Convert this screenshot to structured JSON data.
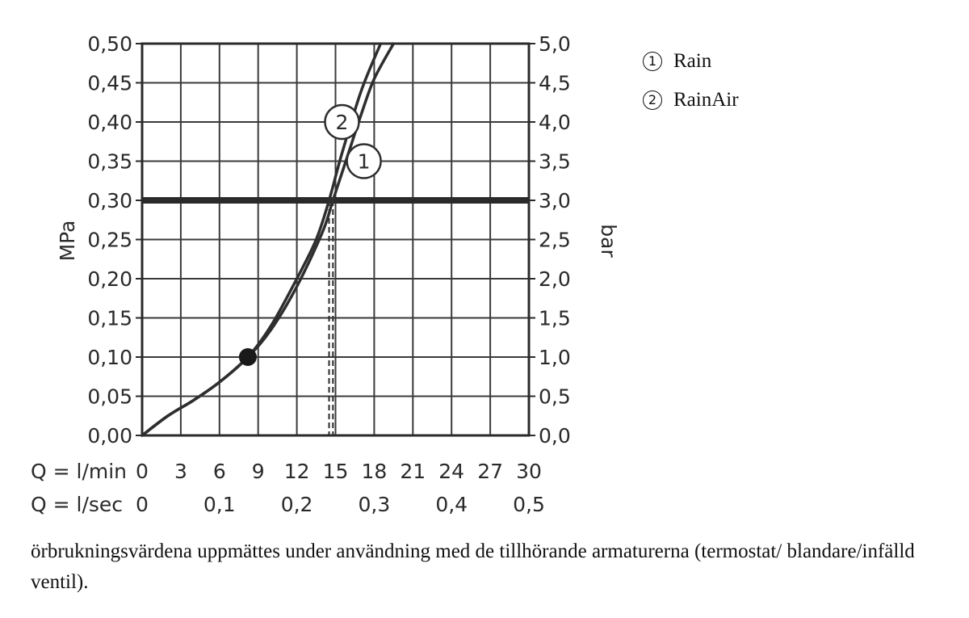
{
  "chart_data": {
    "type": "line",
    "y_left_label": "MPa",
    "y_right_label": "bar",
    "y_left_ticks": [
      "0,00",
      "0,05",
      "0,10",
      "0,15",
      "0,20",
      "0,25",
      "0,30",
      "0,35",
      "0,40",
      "0,45",
      "0,50"
    ],
    "y_right_ticks": [
      "0,0",
      "0,5",
      "1,0",
      "1,5",
      "2,0",
      "2,5",
      "3,0",
      "3,5",
      "4,0",
      "4,5",
      "5,0"
    ],
    "ylim": [
      0,
      0.5
    ],
    "xlim": [
      0,
      30
    ],
    "x_row1_label": "Q = l/min",
    "x_row1_ticks": [
      {
        "v": 0,
        "t": "0"
      },
      {
        "v": 3,
        "t": "3"
      },
      {
        "v": 6,
        "t": "6"
      },
      {
        "v": 9,
        "t": "9"
      },
      {
        "v": 12,
        "t": "12"
      },
      {
        "v": 15,
        "t": "15"
      },
      {
        "v": 18,
        "t": "18"
      },
      {
        "v": 21,
        "t": "21"
      },
      {
        "v": 24,
        "t": "24"
      },
      {
        "v": 27,
        "t": "27"
      },
      {
        "v": 30,
        "t": "30"
      }
    ],
    "x_row2_label": "Q = l/sec",
    "x_row2_ticks": [
      {
        "v": 0,
        "t": "0"
      },
      {
        "v": 6,
        "t": "0,1"
      },
      {
        "v": 12,
        "t": "0,2"
      },
      {
        "v": 18,
        "t": "0,3"
      },
      {
        "v": 24,
        "t": "0,4"
      },
      {
        "v": 30,
        "t": "0,5"
      }
    ],
    "grid": true,
    "reference_line": {
      "y": 0.3
    },
    "junction_point": {
      "x": 8.2,
      "y": 0.1
    },
    "series": [
      {
        "name": "Rain",
        "marker": "1",
        "points": [
          [
            0,
            0
          ],
          [
            2,
            0.025
          ],
          [
            4,
            0.045
          ],
          [
            6,
            0.068
          ],
          [
            8.2,
            0.1
          ],
          [
            10,
            0.135
          ],
          [
            12,
            0.19
          ],
          [
            14,
            0.26
          ],
          [
            14.8,
            0.3
          ],
          [
            16,
            0.36
          ],
          [
            17,
            0.41
          ],
          [
            18,
            0.455
          ],
          [
            19.5,
            0.5
          ]
        ],
        "marker_at": [
          17.2,
          0.35
        ],
        "drop_x": 14.8
      },
      {
        "name": "RainAir",
        "marker": "2",
        "points": [
          [
            0,
            0
          ],
          [
            2,
            0.025
          ],
          [
            4,
            0.045
          ],
          [
            6,
            0.068
          ],
          [
            8.2,
            0.1
          ],
          [
            10,
            0.14
          ],
          [
            12,
            0.2
          ],
          [
            13.5,
            0.25
          ],
          [
            14.5,
            0.3
          ],
          [
            15.5,
            0.36
          ],
          [
            17,
            0.44
          ],
          [
            18.5,
            0.5
          ]
        ],
        "marker_at": [
          15.5,
          0.4
        ],
        "drop_x": 14.5
      }
    ]
  },
  "legend": [
    {
      "num": "1",
      "label": "Rain"
    },
    {
      "num": "2",
      "label": "RainAir"
    }
  ],
  "footnote": "örbrukningsvärdena uppmättes under användning med de tillhörande armaturerna (termostat/ blandare/infälld ventil)."
}
